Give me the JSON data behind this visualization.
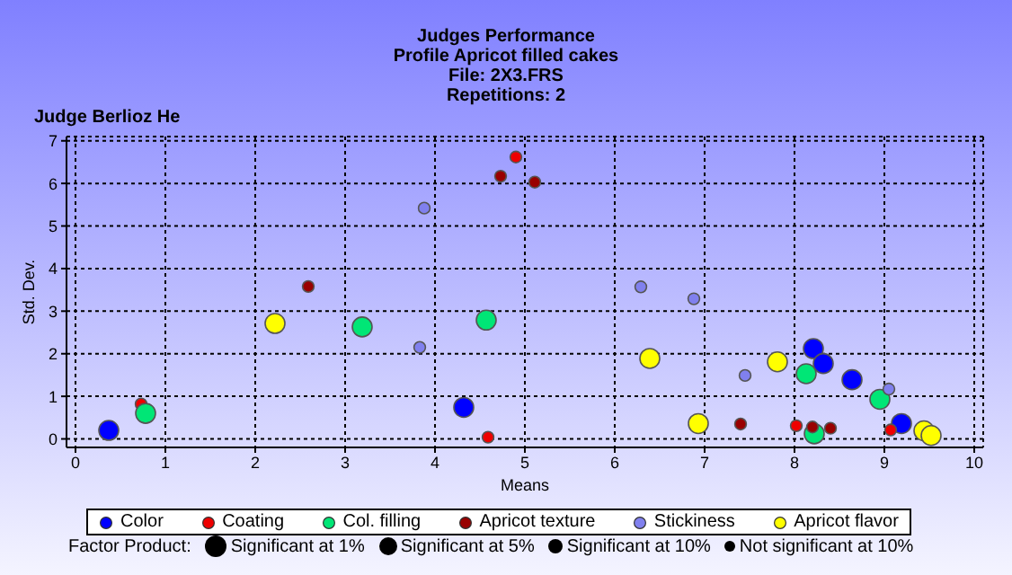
{
  "chart_data": {
    "type": "scatter",
    "title": "Judges Performance",
    "subtitle": "Profile Apricot filled cakes\nFile: 2X3.FRS\nRepetitions: 2",
    "xlabel": "Means",
    "ylabel": "Std. Dev.",
    "annotations": [
      "Judge Berlioz He",
      "Factor Product:",
      "Significant at 1%",
      "Significant at 5%",
      "Significant at 10%",
      "Not significant at 10%"
    ],
    "series": [
      {
        "name": "Color",
        "color": "#0000ff",
        "x": [
          0.37,
          4.32,
          8.21,
          8.32,
          8.64,
          9.19
        ],
        "values": [
          0.2,
          0.74,
          2.12,
          1.77,
          1.39,
          0.36
        ]
      },
      {
        "name": "Coating",
        "color": "#ee0000",
        "x": [
          0.73,
          4.59,
          4.9,
          8.02,
          9.07
        ],
        "values": [
          0.82,
          0.04,
          6.62,
          0.31,
          0.21
        ]
      },
      {
        "name": "Col. filling",
        "color": "#00e676",
        "x": [
          0.78,
          3.19,
          4.57,
          8.13,
          8.22,
          8.95
        ],
        "values": [
          0.6,
          2.63,
          2.79,
          1.53,
          0.12,
          0.93
        ]
      },
      {
        "name": "Apricot texture",
        "color": "#990000",
        "x": [
          2.59,
          4.73,
          5.11,
          7.4,
          8.2,
          8.4
        ],
        "values": [
          3.58,
          6.17,
          6.03,
          0.35,
          0.28,
          0.25
        ]
      },
      {
        "name": "Stickiness",
        "color": "#8080ee",
        "x": [
          3.88,
          3.83,
          6.29,
          6.88,
          7.45,
          9.05
        ],
        "values": [
          5.42,
          2.15,
          3.57,
          3.29,
          1.49,
          1.17
        ]
      },
      {
        "name": "Apricot flavor",
        "color": "#ffff00",
        "x": [
          2.22,
          6.39,
          6.93,
          7.81,
          9.44,
          9.52
        ],
        "values": [
          2.71,
          1.89,
          0.36,
          1.81,
          0.19,
          0.08
        ]
      }
    ],
    "xlim": [
      -0.1,
      10.1
    ],
    "ylim": [
      -0.2,
      7.1
    ],
    "xticks": [
      0,
      1,
      2,
      3,
      4,
      5,
      6,
      7,
      8,
      9,
      10
    ],
    "yticks": [
      0,
      1,
      2,
      3,
      4,
      5,
      6,
      7
    ],
    "grid": true,
    "legend": "bottom",
    "marker": "circle"
  }
}
